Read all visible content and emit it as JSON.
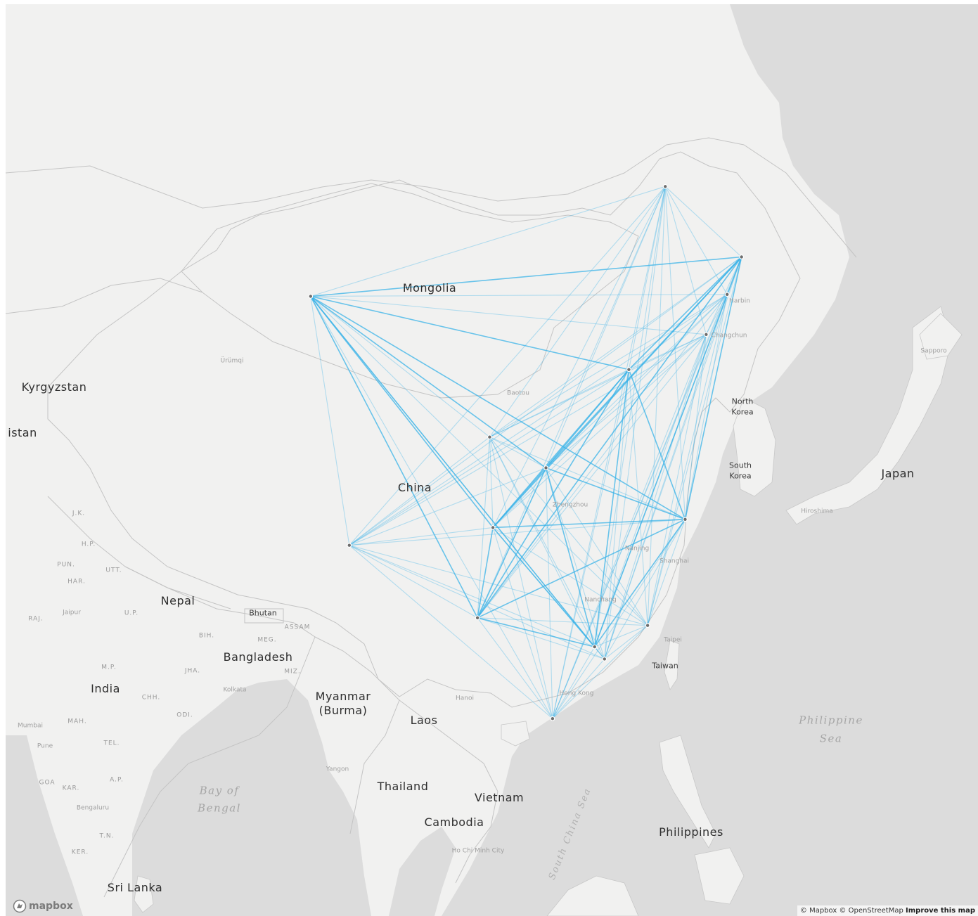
{
  "map": {
    "style": "light",
    "route_color": "#39b3e8",
    "water_color": "#dcdcdc",
    "land_color": "#f1f1f0",
    "hubs": [
      {
        "name": "Ürümqi",
        "lon": 87.6,
        "lat": 43.8
      },
      {
        "name": "Beijing",
        "lon": 116.4,
        "lat": 39.9
      },
      {
        "name": "Shanghai",
        "lon": 121.5,
        "lat": 31.2
      },
      {
        "name": "Guangzhou",
        "lon": 113.3,
        "lat": 23.1
      },
      {
        "name": "Hong Kong",
        "lon": 114.2,
        "lat": 22.3
      },
      {
        "name": "Chengdu",
        "lon": 104.1,
        "lat": 30.7
      },
      {
        "name": "Kunming",
        "lon": 102.7,
        "lat": 25.0
      },
      {
        "name": "Xi'an",
        "lon": 108.9,
        "lat": 34.3
      },
      {
        "name": "Harbin",
        "lon": 126.6,
        "lat": 45.8
      },
      {
        "name": "Changchun",
        "lon": 125.3,
        "lat": 43.9
      },
      {
        "name": "Shenyang",
        "lon": 123.4,
        "lat": 41.8
      },
      {
        "name": "Hailar",
        "lon": 119.7,
        "lat": 49.2
      },
      {
        "name": "Sanya",
        "lon": 109.5,
        "lat": 18.3
      },
      {
        "name": "Lhasa",
        "lon": 91.1,
        "lat": 29.6
      },
      {
        "name": "Lanzhou",
        "lon": 103.8,
        "lat": 36.1
      },
      {
        "name": "Xiamen",
        "lon": 118.1,
        "lat": 24.5
      }
    ]
  },
  "labels": {
    "mongolia": "Mongolia",
    "china": "China",
    "kyrgyzstan": "Kyrgyzstan",
    "istan": "istan",
    "nepal": "Nepal",
    "bhutan": "Bhutan",
    "bangladesh": "Bangladesh",
    "india": "India",
    "myanmar_1": "Myanmar",
    "myanmar_2": "(Burma)",
    "laos": "Laos",
    "thailand": "Thailand",
    "vietnam": "Vietnam",
    "cambodia": "Cambodia",
    "philippines": "Philippines",
    "taiwan": "Taiwan",
    "north_korea_1": "North",
    "north_korea_2": "Korea",
    "south_korea_1": "South",
    "south_korea_2": "Korea",
    "japan": "Japan",
    "sri_lanka": "Sri Lanka",
    "bay_of_bengal_1": "Bay of",
    "bay_of_bengal_2": "Bengal",
    "philippine_sea_1": "Philippine",
    "philippine_sea_2": "Sea",
    "south_china_sea": "South China Sea"
  },
  "regions": {
    "jk": "J.K.",
    "hp": "H.P.",
    "pun": "PUN.",
    "utt": "UTT.",
    "har": "HAR.",
    "raj": "RAJ.",
    "up": "U.P.",
    "bih": "BIH.",
    "meg": "MEG.",
    "assam": "ASSAM",
    "jha": "JHA.",
    "miz": "MIZ.",
    "mp": "M.P.",
    "chh": "CHH.",
    "odi": "ODI.",
    "mah": "MAH.",
    "tel": "TEL.",
    "goa": "GOA",
    "kar": "KAR.",
    "ap": "A.P.",
    "tn": "T.N.",
    "ker": "KER."
  },
  "cities": {
    "urumqi": "Ürümqi",
    "baotou": "Baotou",
    "harbin": "Harbin",
    "changchun": "Changchun",
    "zhengzhou": "Zhengzhou",
    "nanjing": "Nanjing",
    "shanghai": "Shanghai",
    "nanchang": "Nanchang",
    "taipei": "Taipei",
    "hong_kong": "Hong Kong",
    "hanoi": "Hanoi",
    "jaipur": "Jaipur",
    "kolkata": "Kolkata",
    "mumbai": "Mumbai",
    "pune": "Pune",
    "bengaluru": "Bengaluru",
    "yangon": "Yangon",
    "ho_chi_minh": "Ho Chi Minh City",
    "hiroshima": "Hiroshima",
    "sapporo": "Sapporo"
  },
  "logo": {
    "text": "mapbox",
    "icon": "mapbox-logo-icon"
  },
  "attribution": {
    "mapbox": "© Mapbox",
    "osm": "© OpenStreetMap",
    "improve": "Improve this map"
  }
}
